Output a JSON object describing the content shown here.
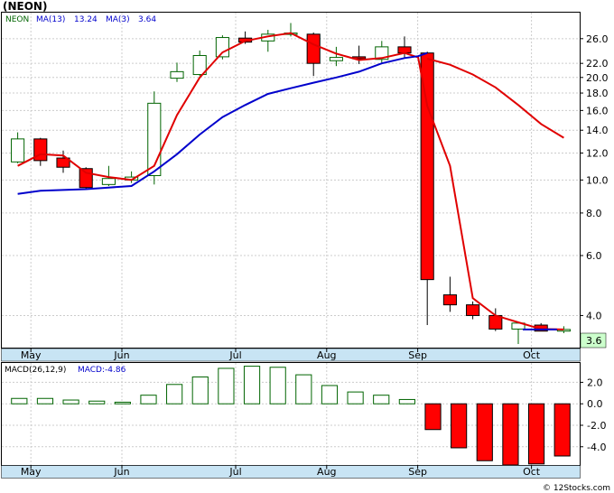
{
  "header": {
    "title": "(NEON)"
  },
  "colors": {
    "up": "#006400",
    "down": "#ff0000",
    "ma13": "#0000cc",
    "ma3": "#e00000",
    "grid": "#cccccc",
    "panel_bg": "#ffffff",
    "axis_strip": "#c8e4f4",
    "last_price_bg": "#ccffcc",
    "macd_legend": "#0000cc"
  },
  "chart_data": [
    {
      "type": "candlestick",
      "legend": [
        {
          "text": "NEON",
          "color": "#006400"
        },
        {
          "text": "MA(13)",
          "color": "#0000cc"
        },
        {
          "text": "13.24",
          "color": "#0000cc"
        },
        {
          "text": "MA(3)",
          "color": "#0000cc"
        },
        {
          "text": "3.64",
          "color": "#0000cc"
        }
      ],
      "y_scale": "log",
      "ylim": [
        3.2,
        31
      ],
      "y_ticks": [
        4.0,
        6.0,
        8.0,
        10.0,
        12.0,
        14.0,
        16.0,
        18.0,
        20.0,
        22.0,
        26.0
      ],
      "y_tick_labels": [
        "4.0",
        "6.0",
        "8.0",
        "10.0",
        "12.0",
        "14.0",
        "16.0",
        "18.0",
        "20.0",
        "22.0",
        "26.0"
      ],
      "x_labels": [
        "May",
        "Jun",
        "Jul",
        "Aug",
        "Sep",
        "Oct"
      ],
      "last_price": "3.6",
      "candles": [
        {
          "o": 11.3,
          "h": 13.8,
          "l": 11.2,
          "c": 13.2
        },
        {
          "o": 13.2,
          "h": 13.3,
          "l": 11.0,
          "c": 11.4
        },
        {
          "o": 11.6,
          "h": 12.2,
          "l": 10.5,
          "c": 10.9
        },
        {
          "o": 10.8,
          "h": 10.9,
          "l": 9.4,
          "c": 9.5
        },
        {
          "o": 9.7,
          "h": 11.0,
          "l": 9.6,
          "c": 10.1
        },
        {
          "o": 10.0,
          "h": 10.6,
          "l": 9.8,
          "c": 10.2
        },
        {
          "o": 10.3,
          "h": 18.2,
          "l": 9.7,
          "c": 16.8
        },
        {
          "o": 19.9,
          "h": 22.1,
          "l": 19.4,
          "c": 20.8
        },
        {
          "o": 20.4,
          "h": 24.0,
          "l": 20.2,
          "c": 23.2
        },
        {
          "o": 23.0,
          "h": 26.6,
          "l": 22.6,
          "c": 26.2
        },
        {
          "o": 26.1,
          "h": 27.3,
          "l": 25.1,
          "c": 25.4
        },
        {
          "o": 25.6,
          "h": 27.6,
          "l": 23.8,
          "c": 26.8
        },
        {
          "o": 26.8,
          "h": 28.9,
          "l": 26.4,
          "c": 27.0
        },
        {
          "o": 26.8,
          "h": 27.1,
          "l": 20.2,
          "c": 22.0
        },
        {
          "o": 22.4,
          "h": 24.6,
          "l": 21.6,
          "c": 22.9
        },
        {
          "o": 23.0,
          "h": 24.8,
          "l": 21.9,
          "c": 22.7
        },
        {
          "o": 22.6,
          "h": 25.6,
          "l": 22.1,
          "c": 24.6
        },
        {
          "o": 24.6,
          "h": 26.4,
          "l": 22.8,
          "c": 23.6
        },
        {
          "o": 23.6,
          "h": 23.8,
          "l": 3.75,
          "c": 5.1
        },
        {
          "o": 4.6,
          "h": 5.2,
          "l": 4.1,
          "c": 4.3
        },
        {
          "o": 4.3,
          "h": 4.4,
          "l": 3.9,
          "c": 4.0
        },
        {
          "o": 4.0,
          "h": 4.2,
          "l": 3.6,
          "c": 3.65
        },
        {
          "o": 3.65,
          "h": 3.8,
          "l": 3.3,
          "c": 3.8
        },
        {
          "o": 3.75,
          "h": 3.8,
          "l": 3.6,
          "c": 3.6
        },
        {
          "o": 3.6,
          "h": 3.72,
          "l": 3.55,
          "c": 3.64
        }
      ],
      "ma13": [
        {
          "i": 0,
          "v": 9.1
        },
        {
          "i": 1,
          "v": 9.3
        },
        {
          "i": 2,
          "v": 9.35
        },
        {
          "i": 3,
          "v": 9.4
        },
        {
          "i": 4,
          "v": 9.5
        },
        {
          "i": 5,
          "v": 9.6
        },
        {
          "i": 6,
          "v": 10.6
        },
        {
          "i": 7,
          "v": 11.9
        },
        {
          "i": 8,
          "v": 13.6
        },
        {
          "i": 9,
          "v": 15.3
        },
        {
          "i": 10,
          "v": 16.6
        },
        {
          "i": 11,
          "v": 17.9
        },
        {
          "i": 12,
          "v": 18.6
        },
        {
          "i": 13,
          "v": 19.3
        },
        {
          "i": 14,
          "v": 20.0
        },
        {
          "i": 15,
          "v": 20.8
        },
        {
          "i": 16,
          "v": 22.0
        },
        {
          "i": 17,
          "v": 22.8
        },
        {
          "i": 17.6,
          "v": 23.1
        },
        {
          "i": 18,
          "v": 23.6
        }
      ],
      "ma13_tail": [
        {
          "i": 22.2,
          "v": 3.64
        },
        {
          "i": 23.7,
          "v": 3.64
        }
      ],
      "ma3": [
        {
          "i": 0,
          "v": 11.0
        },
        {
          "i": 1,
          "v": 11.9
        },
        {
          "i": 2,
          "v": 11.8
        },
        {
          "i": 3,
          "v": 10.5
        },
        {
          "i": 4,
          "v": 10.2
        },
        {
          "i": 5,
          "v": 10.0
        },
        {
          "i": 6,
          "v": 11.0
        },
        {
          "i": 7,
          "v": 15.5
        },
        {
          "i": 8,
          "v": 20.0
        },
        {
          "i": 9,
          "v": 23.7
        },
        {
          "i": 10,
          "v": 25.6
        },
        {
          "i": 11,
          "v": 26.4
        },
        {
          "i": 12,
          "v": 27.0
        },
        {
          "i": 13,
          "v": 25.0
        },
        {
          "i": 14,
          "v": 23.5
        },
        {
          "i": 15,
          "v": 22.5
        },
        {
          "i": 16,
          "v": 22.8
        },
        {
          "i": 17,
          "v": 23.6
        },
        {
          "i": 17.6,
          "v": 22.9
        },
        {
          "i": 18,
          "v": 16.5
        },
        {
          "i": 19,
          "v": 11.0
        },
        {
          "i": 20,
          "v": 4.5
        },
        {
          "i": 21,
          "v": 4.0
        },
        {
          "i": 22,
          "v": 3.82
        },
        {
          "i": 23,
          "v": 3.65
        },
        {
          "i": 24,
          "v": 3.64
        }
      ],
      "ma_slow": [
        {
          "i": 18,
          "v": 22.7
        },
        {
          "i": 19,
          "v": 21.8
        },
        {
          "i": 20,
          "v": 20.4
        },
        {
          "i": 21,
          "v": 18.7
        },
        {
          "i": 22,
          "v": 16.6
        },
        {
          "i": 23,
          "v": 14.6
        },
        {
          "i": 24,
          "v": 13.3
        }
      ]
    },
    {
      "type": "bar",
      "title": "MACD(26,12,9)",
      "legend_value": "MACD:-4.86",
      "ylim": [
        -5.7,
        3.8
      ],
      "y_ticks": [
        2.0,
        0.0,
        -2.0,
        -4.0
      ],
      "y_tick_labels": [
        "2.0",
        "0.0",
        "-2.0",
        "-4.0"
      ],
      "x_labels": [
        "May",
        "Jun",
        "Jul",
        "Aug",
        "Sep",
        "Oct"
      ],
      "values": [
        0.5,
        0.5,
        0.35,
        0.25,
        0.15,
        0.8,
        1.8,
        2.5,
        3.3,
        3.5,
        3.4,
        2.7,
        1.7,
        1.1,
        0.8,
        0.4,
        -2.4,
        -4.1,
        -5.3,
        -5.7,
        -5.6,
        -4.86
      ]
    }
  ],
  "watermark": "© 12Stocks.com"
}
